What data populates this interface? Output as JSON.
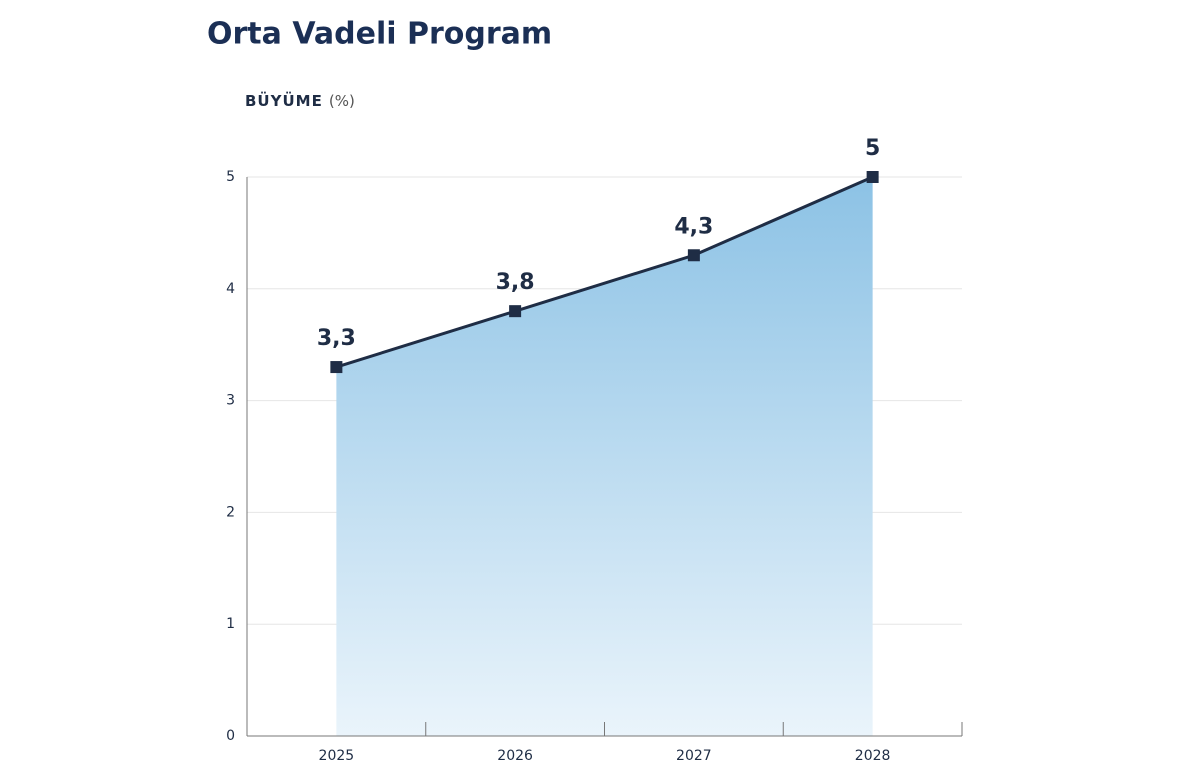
{
  "chart_data": {
    "type": "area",
    "title": "Orta Vadeli Program",
    "y_label": "BÜYÜME",
    "y_unit": "(%)",
    "categories": [
      "2025",
      "2026",
      "2027",
      "2028"
    ],
    "values": [
      3.3,
      3.8,
      4.3,
      5
    ],
    "value_labels": [
      "3,3",
      "3,8",
      "4,3",
      "5"
    ],
    "color": "#1f2d45",
    "fill_top": "#8cc2e5",
    "fill_bottom": "#eaf4fb",
    "ylim": [
      0,
      5
    ],
    "yticks": [
      0,
      1,
      2,
      3,
      4,
      5
    ],
    "grid": true
  }
}
